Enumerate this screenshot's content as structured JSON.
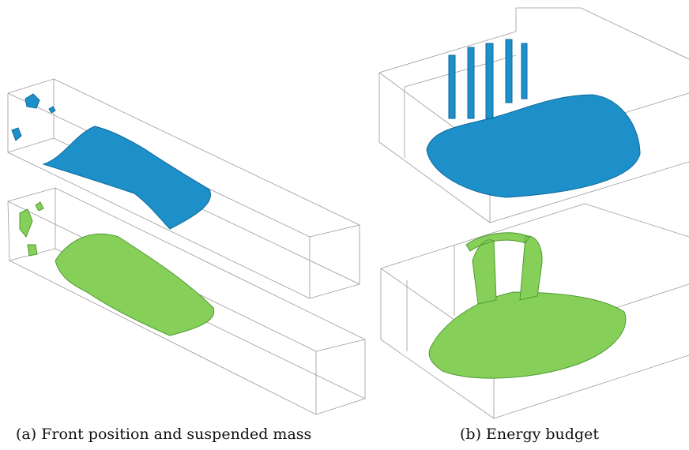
{
  "figure": {
    "subfigures": [
      {
        "caption": "(a) Front position and suspended mass"
      },
      {
        "caption": "(b) Energy budget"
      }
    ]
  }
}
